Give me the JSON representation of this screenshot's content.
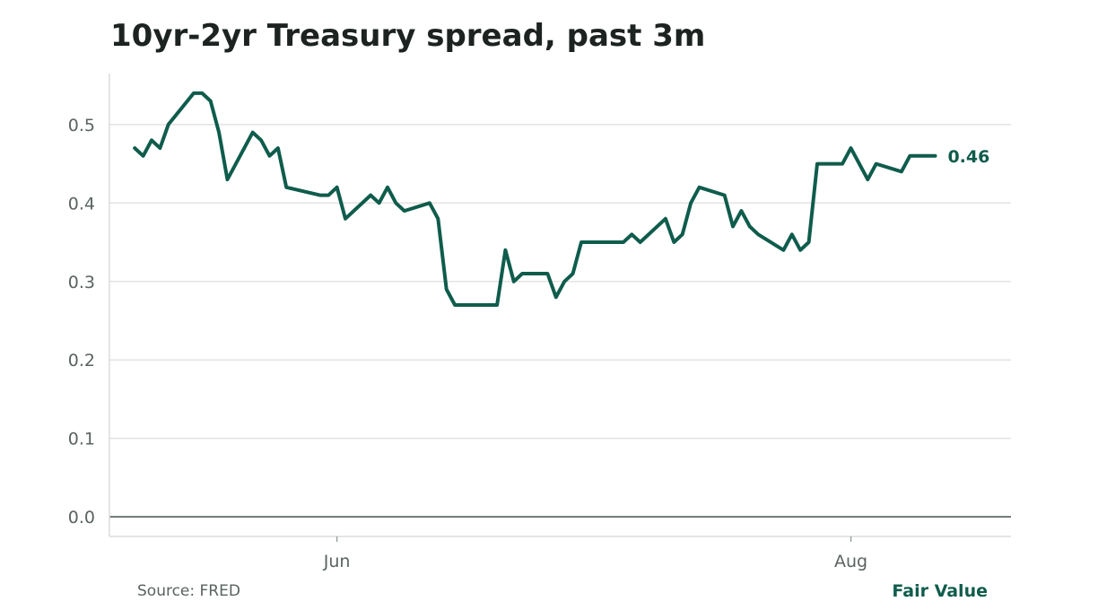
{
  "title": "10yr-2yr Treasury spread, past 3m",
  "source": "Source: FRED",
  "brand": "Fair Value",
  "colors": {
    "line": "#0f5c4c",
    "grid": "#e3e3e3",
    "zero_line": "#6b7572",
    "text": "#5a6360",
    "title": "#1c2320"
  },
  "chart_data": {
    "type": "line",
    "title": "10yr-2yr Treasury spread, past 3m",
    "xlabel": "",
    "ylabel": "",
    "ylim": [
      -0.025,
      0.565
    ],
    "yticks": [
      0.0,
      0.1,
      0.2,
      0.3,
      0.4,
      0.5
    ],
    "ytick_labels": [
      "0.0",
      "0.1",
      "0.2",
      "0.3",
      "0.4",
      "0.5"
    ],
    "x_ticks": [
      "Jun",
      "Aug"
    ],
    "grid": "horizontal",
    "end_label": "0.46",
    "x": [
      "2023-05-08",
      "2023-05-09",
      "2023-05-10",
      "2023-05-11",
      "2023-05-12",
      "2023-05-15",
      "2023-05-16",
      "2023-05-17",
      "2023-05-18",
      "2023-05-19",
      "2023-05-22",
      "2023-05-23",
      "2023-05-24",
      "2023-05-25",
      "2023-05-26",
      "2023-05-30",
      "2023-05-31",
      "2023-06-01",
      "2023-06-02",
      "2023-06-05",
      "2023-06-06",
      "2023-06-07",
      "2023-06-08",
      "2023-06-09",
      "2023-06-12",
      "2023-06-13",
      "2023-06-14",
      "2023-06-15",
      "2023-06-16",
      "2023-06-20",
      "2023-06-21",
      "2023-06-22",
      "2023-06-23",
      "2023-06-26",
      "2023-06-27",
      "2023-06-28",
      "2023-06-29",
      "2023-06-30",
      "2023-07-03",
      "2023-07-05",
      "2023-07-06",
      "2023-07-07",
      "2023-07-10",
      "2023-07-11",
      "2023-07-12",
      "2023-07-13",
      "2023-07-14",
      "2023-07-17",
      "2023-07-18",
      "2023-07-19",
      "2023-07-20",
      "2023-07-21",
      "2023-07-24",
      "2023-07-25",
      "2023-07-26",
      "2023-07-27",
      "2023-07-28",
      "2023-07-31",
      "2023-08-01",
      "2023-08-02",
      "2023-08-03",
      "2023-08-04",
      "2023-08-07",
      "2023-08-08",
      "2023-08-09",
      "2023-08-10",
      "2023-08-11"
    ],
    "series": [
      {
        "values": [
          0.47,
          0.46,
          0.48,
          0.47,
          0.5,
          0.54,
          0.54,
          0.53,
          0.49,
          0.43,
          0.49,
          0.48,
          0.46,
          0.47,
          0.42,
          0.41,
          0.41,
          0.42,
          0.38,
          0.41,
          0.4,
          0.42,
          0.4,
          0.39,
          0.4,
          0.38,
          0.29,
          0.27,
          0.27,
          0.27,
          0.34,
          0.3,
          0.31,
          0.31,
          0.28,
          0.3,
          0.31,
          0.35,
          0.35,
          0.35,
          0.36,
          0.35,
          0.38,
          0.35,
          0.36,
          0.4,
          0.42,
          0.41,
          0.37,
          0.39,
          0.37,
          0.36,
          0.34,
          0.36,
          0.34,
          0.35,
          0.45,
          0.45,
          0.47,
          0.45,
          0.43,
          0.45,
          0.44,
          0.46,
          0.46,
          0.46,
          0.46
        ]
      }
    ]
  }
}
